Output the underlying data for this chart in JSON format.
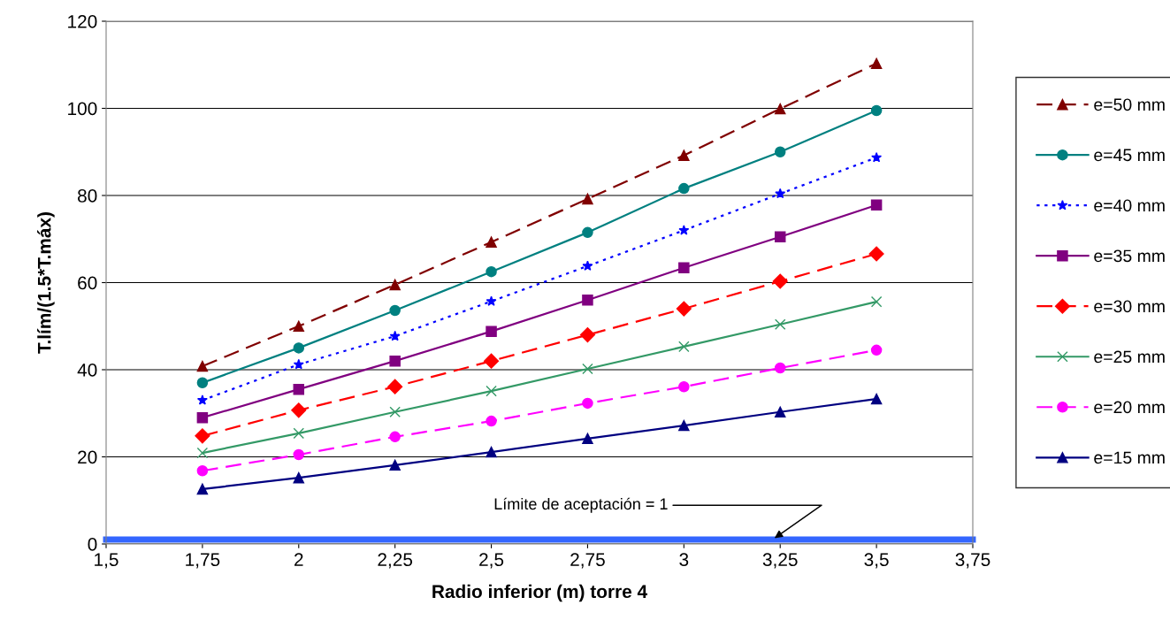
{
  "chart_data": {
    "type": "line",
    "xlabel": "Radio inferior (m) torre 4",
    "ylabel": "T.lím/(1.5*T.máx)",
    "x": [
      1.75,
      2,
      2.25,
      2.5,
      2.75,
      3,
      3.25,
      3.5
    ],
    "series": [
      {
        "name": "e=50 mm",
        "color": "#800000",
        "marker": "triangle",
        "line_style": "dashed",
        "values": [
          40.8,
          50,
          59.5,
          69.3,
          79.2,
          89.2,
          99.9,
          110.3
        ]
      },
      {
        "name": "e=45 mm",
        "color": "#008080",
        "marker": "circle",
        "line_style": "solid",
        "values": [
          37,
          45,
          53.6,
          62.5,
          71.5,
          81.6,
          90,
          99.5
        ]
      },
      {
        "name": "e=40 mm",
        "color": "#0000ff",
        "marker": "star",
        "line_style": "dotted",
        "values": [
          33,
          41.2,
          47.7,
          55.7,
          63.8,
          72,
          80.4,
          88.7
        ]
      },
      {
        "name": "e=35 mm",
        "color": "#800080",
        "marker": "square",
        "line_style": "solid",
        "values": [
          29,
          35.5,
          42,
          48.8,
          56,
          63.4,
          70.5,
          77.8
        ]
      },
      {
        "name": "e=30 mm",
        "color": "#ff0000",
        "marker": "diamond",
        "line_style": "dashed",
        "values": [
          24.8,
          30.7,
          36.1,
          42,
          48,
          54,
          60.3,
          66.6
        ]
      },
      {
        "name": "e=25 mm",
        "color": "#339966",
        "marker": "cross",
        "line_style": "solid",
        "values": [
          20.9,
          25.4,
          30.3,
          35.1,
          40.2,
          45.3,
          50.4,
          55.6
        ]
      },
      {
        "name": "e=20 mm",
        "color": "#ff00ff",
        "marker": "circle",
        "line_style": "dashed",
        "values": [
          16.8,
          20.5,
          24.6,
          28.2,
          32.3,
          36.1,
          40.4,
          44.5
        ]
      },
      {
        "name": "e=15 mm",
        "color": "#000080",
        "marker": "triangle",
        "line_style": "solid",
        "values": [
          12.6,
          15.2,
          18.1,
          21.1,
          24.2,
          27.2,
          30.3,
          33.3
        ]
      }
    ],
    "xlim": [
      1.5,
      3.75
    ],
    "xticks": [
      {
        "value": 1.5,
        "label": "1,5"
      },
      {
        "value": 1.75,
        "label": "1,75"
      },
      2,
      {
        "value": 2.25,
        "label": "2,25"
      },
      {
        "value": 2.5,
        "label": "2,5"
      },
      {
        "value": 2.75,
        "label": "2,75"
      },
      3,
      {
        "value": 3.25,
        "label": "3,25"
      },
      {
        "value": 3.5,
        "label": "3,5"
      },
      {
        "value": 3.75,
        "label": "3,75"
      }
    ],
    "ylim": [
      0,
      120
    ],
    "yticks": [
      0,
      20,
      40,
      60,
      80,
      100,
      120
    ],
    "ref_lines": [
      {
        "axis": "y",
        "value": 1,
        "color": "#3366ff"
      }
    ],
    "annotations": [
      {
        "text": "Límite de aceptación = 1",
        "x": 3.23,
        "y": 1
      }
    ],
    "grid": "y",
    "legend": "right"
  }
}
